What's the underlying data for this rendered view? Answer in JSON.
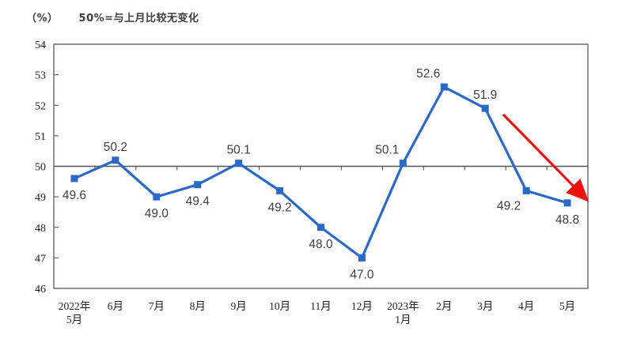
{
  "header": {
    "unit_label": "（%）",
    "note": "50%=与上月比较无变化"
  },
  "chart_data": {
    "type": "line",
    "title": "",
    "ylabel_unit": "%",
    "note": "50%=与上月比较无变化",
    "categories": [
      "2022年5月",
      "6月",
      "7月",
      "8月",
      "9月",
      "10月",
      "11月",
      "12月",
      "2023年1月",
      "2月",
      "3月",
      "4月",
      "5月"
    ],
    "x_tick_labels": [
      {
        "line1": "2022年",
        "line2": "5月"
      },
      {
        "line1": "6月"
      },
      {
        "line1": "7月"
      },
      {
        "line1": "8月"
      },
      {
        "line1": "9月"
      },
      {
        "line1": "10月"
      },
      {
        "line1": "11月"
      },
      {
        "line1": "12月"
      },
      {
        "line1": "2023年",
        "line2": "1月"
      },
      {
        "line1": "2月"
      },
      {
        "line1": "3月"
      },
      {
        "line1": "4月"
      },
      {
        "line1": "5月"
      }
    ],
    "values": [
      49.6,
      50.2,
      49.0,
      49.4,
      50.1,
      49.2,
      48.0,
      47.0,
      50.1,
      52.6,
      51.9,
      49.2,
      48.8
    ],
    "label_pos": [
      "below",
      "above",
      "below",
      "below",
      "above",
      "below",
      "below",
      "below",
      "above-left",
      "above-left",
      "above",
      "below-left",
      "below"
    ],
    "ylim": [
      46,
      54
    ],
    "y_ticks": [
      46,
      47,
      48,
      49,
      50,
      51,
      52,
      53,
      54
    ],
    "reference_line": 50,
    "grid": "off",
    "legend": "none",
    "line_color": "#2a69c8",
    "marker": "square",
    "axis_color": "#595959",
    "ref_line_color": "#555555",
    "data_label_color": "#3f3f3f",
    "annotation_arrow": {
      "description": "red downward trend arrow",
      "color": "#ee1111",
      "from": {
        "x": 10.44,
        "value": 51.7
      },
      "to": {
        "x": 12.44,
        "value": 48.95
      }
    }
  }
}
